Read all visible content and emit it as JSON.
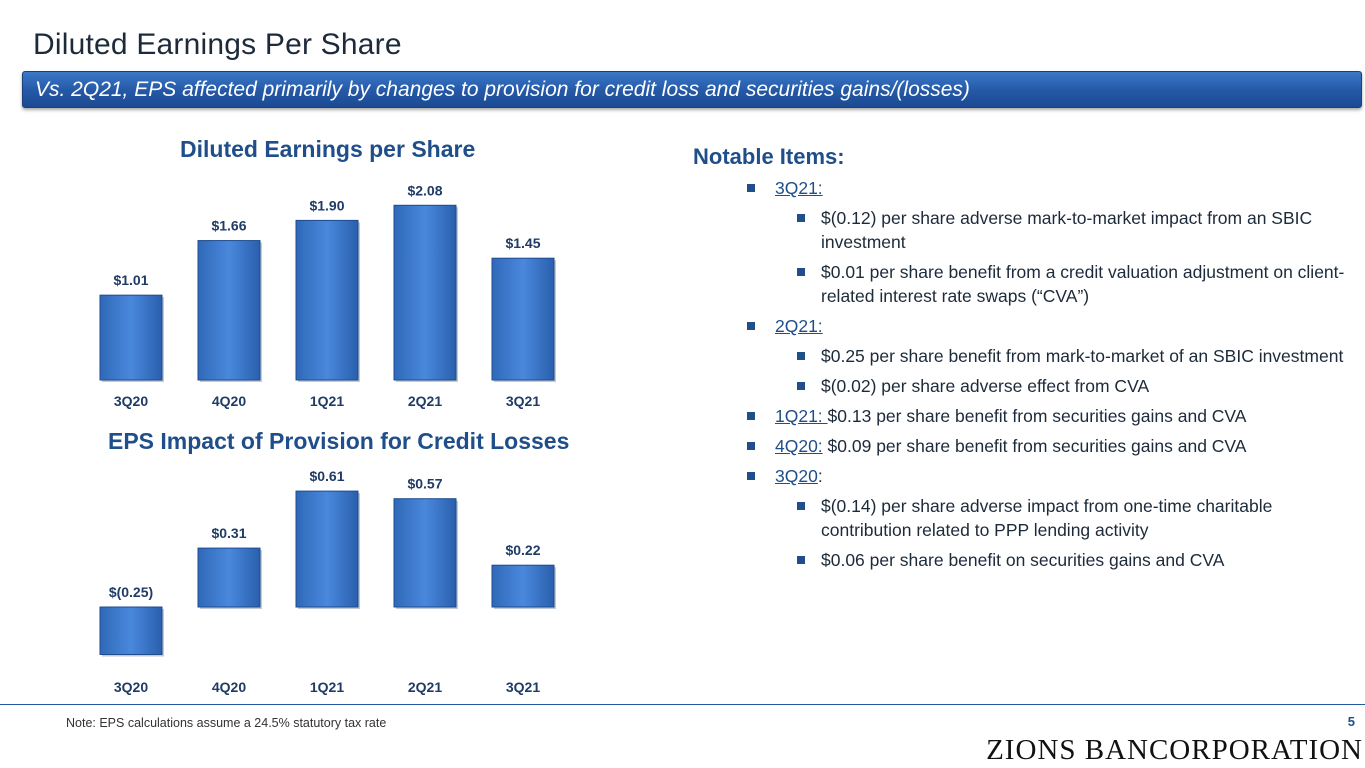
{
  "header": {
    "title": "Diluted Earnings Per Share",
    "subtitle": "Vs. 2Q21, EPS affected primarily by changes to provision for credit loss and securities gains/(losses)"
  },
  "colors": {
    "accent": "#2458a6",
    "bar": "#3b78cf",
    "text": "#1f4e8a"
  },
  "chart_data": [
    {
      "type": "bar",
      "title": "Diluted Earnings per Share",
      "categories": [
        "3Q20",
        "4Q20",
        "1Q21",
        "2Q21",
        "3Q21"
      ],
      "values": [
        1.01,
        1.66,
        1.9,
        2.08,
        1.45
      ],
      "labels": [
        "$1.01",
        "$1.66",
        "$1.90",
        "$2.08",
        "$1.45"
      ],
      "xlabel": "",
      "ylabel": "",
      "ylim": [
        0,
        2.08
      ],
      "grid": false
    },
    {
      "type": "bar",
      "title": "EPS Impact of Provision for Credit Losses",
      "categories": [
        "3Q20",
        "4Q20",
        "1Q21",
        "2Q21",
        "3Q21"
      ],
      "values": [
        -0.25,
        0.31,
        0.61,
        0.57,
        0.22
      ],
      "labels": [
        "$(0.25)",
        "$0.31",
        "$0.61",
        "$0.57",
        "$0.22"
      ],
      "xlabel": "",
      "ylabel": "",
      "ylim": [
        -0.25,
        0.61
      ],
      "grid": false
    }
  ],
  "notable": {
    "heading": "Notable Items:",
    "items": [
      {
        "quarter": "3Q21:",
        "text": "",
        "sub": [
          "$(0.12) per share adverse mark-to-market impact from an SBIC investment",
          "$0.01 per share benefit from a credit valuation adjustment on client-related interest rate swaps (“CVA”)"
        ]
      },
      {
        "quarter": "2Q21:",
        "text": "",
        "sub": [
          "$0.25 per share benefit from mark-to-market of an SBIC investment",
          "$(0.02) per share adverse effect from CVA"
        ]
      },
      {
        "quarter": "1Q21: ",
        "text": "$0.13 per share benefit from securities gains and CVA",
        "sub": []
      },
      {
        "quarter": "4Q20:",
        "text": " $0.09 per share benefit from securities gains and CVA",
        "sub": []
      },
      {
        "quarter": "3Q20",
        "text": ":",
        "sub": [
          "$(0.14) per share adverse impact from one-time charitable contribution related to PPP lending activity",
          "$0.06 per share benefit on securities gains and CVA"
        ]
      }
    ]
  },
  "footer": {
    "note": "Note: EPS calculations assume a 24.5% statutory tax rate",
    "page": "5",
    "logo": "ZIONS BANCORPORATION"
  }
}
